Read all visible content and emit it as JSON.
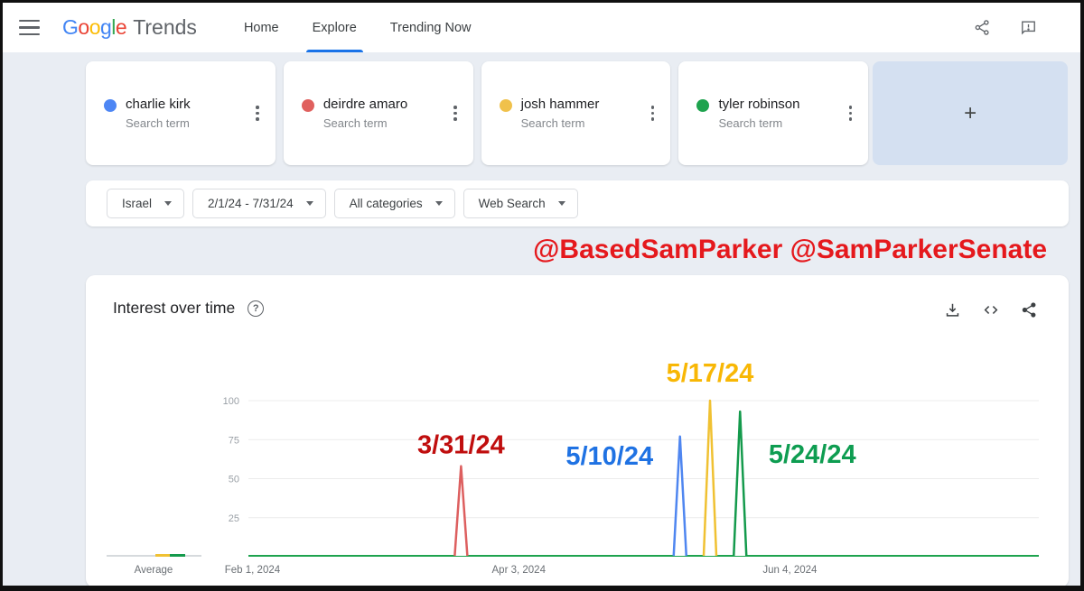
{
  "topbar": {
    "logo": {
      "letters": [
        {
          "t": "G",
          "c": "#4285F4"
        },
        {
          "t": "o",
          "c": "#EA4335"
        },
        {
          "t": "o",
          "c": "#FBBC05"
        },
        {
          "t": "g",
          "c": "#4285F4"
        },
        {
          "t": "l",
          "c": "#34A853"
        },
        {
          "t": "e",
          "c": "#EA4335"
        }
      ],
      "suffix": "Trends"
    },
    "nav": [
      {
        "label": "Home"
      },
      {
        "label": "Explore"
      },
      {
        "label": "Trending Now"
      }
    ],
    "accent_color": "#1a73e8"
  },
  "terms": [
    {
      "name": "charlie kirk",
      "type": "Search term",
      "color": "#4d86f4"
    },
    {
      "name": "deirdre amaro",
      "type": "Search term",
      "color": "#e0605e"
    },
    {
      "name": "josh hammer",
      "type": "Search term",
      "color": "#f0c14b"
    },
    {
      "name": "tyler robinson",
      "type": "Search term",
      "color": "#1ea34e"
    }
  ],
  "add_term_label": "+",
  "filters": [
    {
      "label": "Israel"
    },
    {
      "label": "2/1/24 - 7/31/24"
    },
    {
      "label": "All categories"
    },
    {
      "label": "Web Search"
    }
  ],
  "watermark": "@BasedSamParker @SamParkerSenate",
  "watermark_color": "#e5191d",
  "chart_card": {
    "title": "Interest over time",
    "help_glyph": "?"
  },
  "chart_data": {
    "type": "line",
    "title": "Interest over time",
    "x_range": [
      "2/1/24",
      "7/31/24"
    ],
    "x_ticks": [
      "Feb 1, 2024",
      "Apr 3, 2024",
      "Jun 4, 2024"
    ],
    "x_tick_layout": [
      {
        "label": "Feb 1, 2024",
        "frac": -0.03,
        "anchor": "start"
      },
      {
        "label": "Apr 3, 2024",
        "frac": 0.342,
        "anchor": "middle"
      },
      {
        "label": "Jun 4, 2024",
        "frac": 0.685,
        "anchor": "middle"
      }
    ],
    "ylim": [
      0,
      100
    ],
    "y_ticks": [
      25,
      50,
      75,
      100
    ],
    "grid": true,
    "legend_position": "none",
    "baseline_value": 1,
    "baseline_color": "#1ea34e",
    "series": [
      {
        "name": "charlie kirk",
        "color": "#4f86f0",
        "label_color": "#1f72e3",
        "spike_date": "5/10/24",
        "peak": 77,
        "x_frac": 0.546,
        "label_dx": -78,
        "label_dy": 22
      },
      {
        "name": "deirdre amaro",
        "color": "#dd5f5f",
        "label_color": "#c00e0e",
        "spike_date": "3/31/24",
        "peak": 58,
        "x_frac": 0.269,
        "label_dx": 0,
        "label_dy": -23
      },
      {
        "name": "josh hammer",
        "color": "#f0c132",
        "label_color": "#f8b705",
        "spike_date": "5/17/24",
        "peak": 100,
        "x_frac": 0.584,
        "label_dx": 0,
        "label_dy": -30
      },
      {
        "name": "tyler robinson",
        "color": "#149a4c",
        "label_color": "#0e9d51",
        "spike_date": "5/24/24",
        "peak": 93,
        "x_frac": 0.622,
        "label_dx": 80,
        "label_dy": 48
      }
    ],
    "average": {
      "label": "Average",
      "line_x": [
        23,
        128
      ],
      "label_x": 75,
      "segments": [
        {
          "color": "#f0c132",
          "x": [
            77,
            93
          ]
        },
        {
          "color": "#149a4c",
          "x": [
            93,
            110
          ]
        }
      ]
    }
  }
}
